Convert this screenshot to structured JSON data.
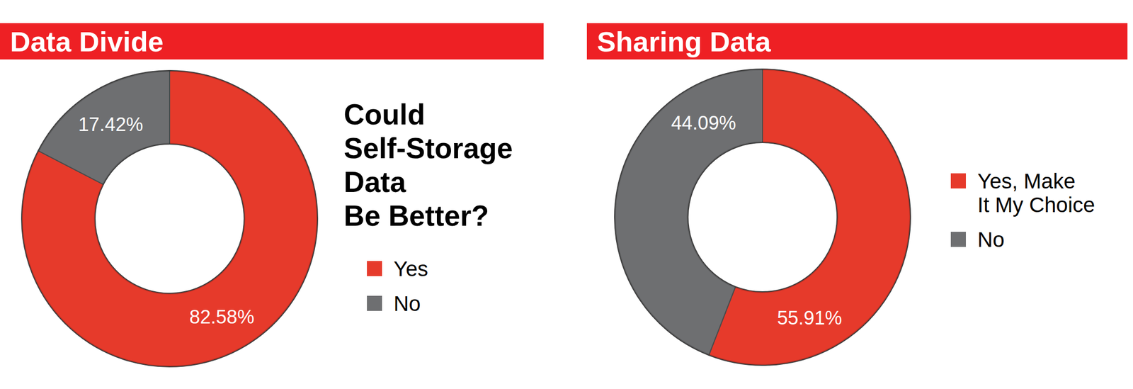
{
  "chart_data": [
    {
      "type": "donut",
      "title": "Data Divide",
      "subtitle": "Could Self-Storage Data Be Better?",
      "categories": [
        "Yes",
        "No"
      ],
      "values": [
        82.58,
        17.42
      ],
      "value_labels": [
        "82.58%",
        "17.42%"
      ],
      "colors": [
        "#e63a2b",
        "#6e6f71"
      ],
      "data_labels": true,
      "legend": "right"
    },
    {
      "type": "donut",
      "title": "Sharing Data",
      "categories": [
        "Yes, Make It My Choice",
        "No"
      ],
      "values": [
        55.91,
        44.09
      ],
      "value_labels": [
        "55.91%",
        "44.09%"
      ],
      "colors": [
        "#e63a2b",
        "#6e6f71"
      ],
      "data_labels": true,
      "legend": "right"
    }
  ]
}
